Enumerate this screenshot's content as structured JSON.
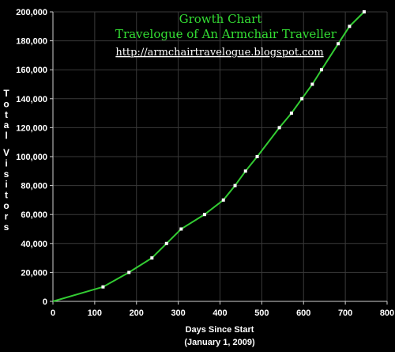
{
  "chart_data": {
    "type": "line",
    "title": "Growth Chart",
    "subtitle": "Travelogue of An Armchair Traveller",
    "url": "http://armchairtravelogue.blogspot.com",
    "xlabel": "Days Since Start",
    "xlabel_note": "(January 1, 2009)",
    "ylabel": "Total Visitors",
    "xlim": [
      0,
      800
    ],
    "ylim": [
      0,
      200000
    ],
    "x_ticks": [
      0,
      100,
      200,
      300,
      400,
      500,
      600,
      700,
      800
    ],
    "y_ticks": [
      0,
      20000,
      40000,
      60000,
      80000,
      100000,
      120000,
      140000,
      160000,
      180000,
      200000
    ],
    "x_tick_labels": [
      "0",
      "100",
      "200",
      "300",
      "400",
      "500",
      "600",
      "700",
      "800"
    ],
    "y_tick_labels": [
      "0",
      "20,000",
      "40,000",
      "60,000",
      "80,000",
      "100,000",
      "120,000",
      "140,000",
      "160,000",
      "180,000",
      "200,000"
    ],
    "grid": true,
    "line_color": "#33cc33",
    "marker_color": "#ffffff",
    "x": [
      0,
      120,
      182,
      237,
      272,
      307,
      363,
      408,
      436,
      461,
      489,
      542,
      571,
      596,
      621,
      643,
      683,
      710,
      745
    ],
    "y": [
      0,
      10000,
      20000,
      30000,
      40000,
      50000,
      60000,
      70000,
      80000,
      90000,
      100000,
      120000,
      130000,
      140000,
      150000,
      160000,
      178000,
      190000,
      200000
    ]
  }
}
